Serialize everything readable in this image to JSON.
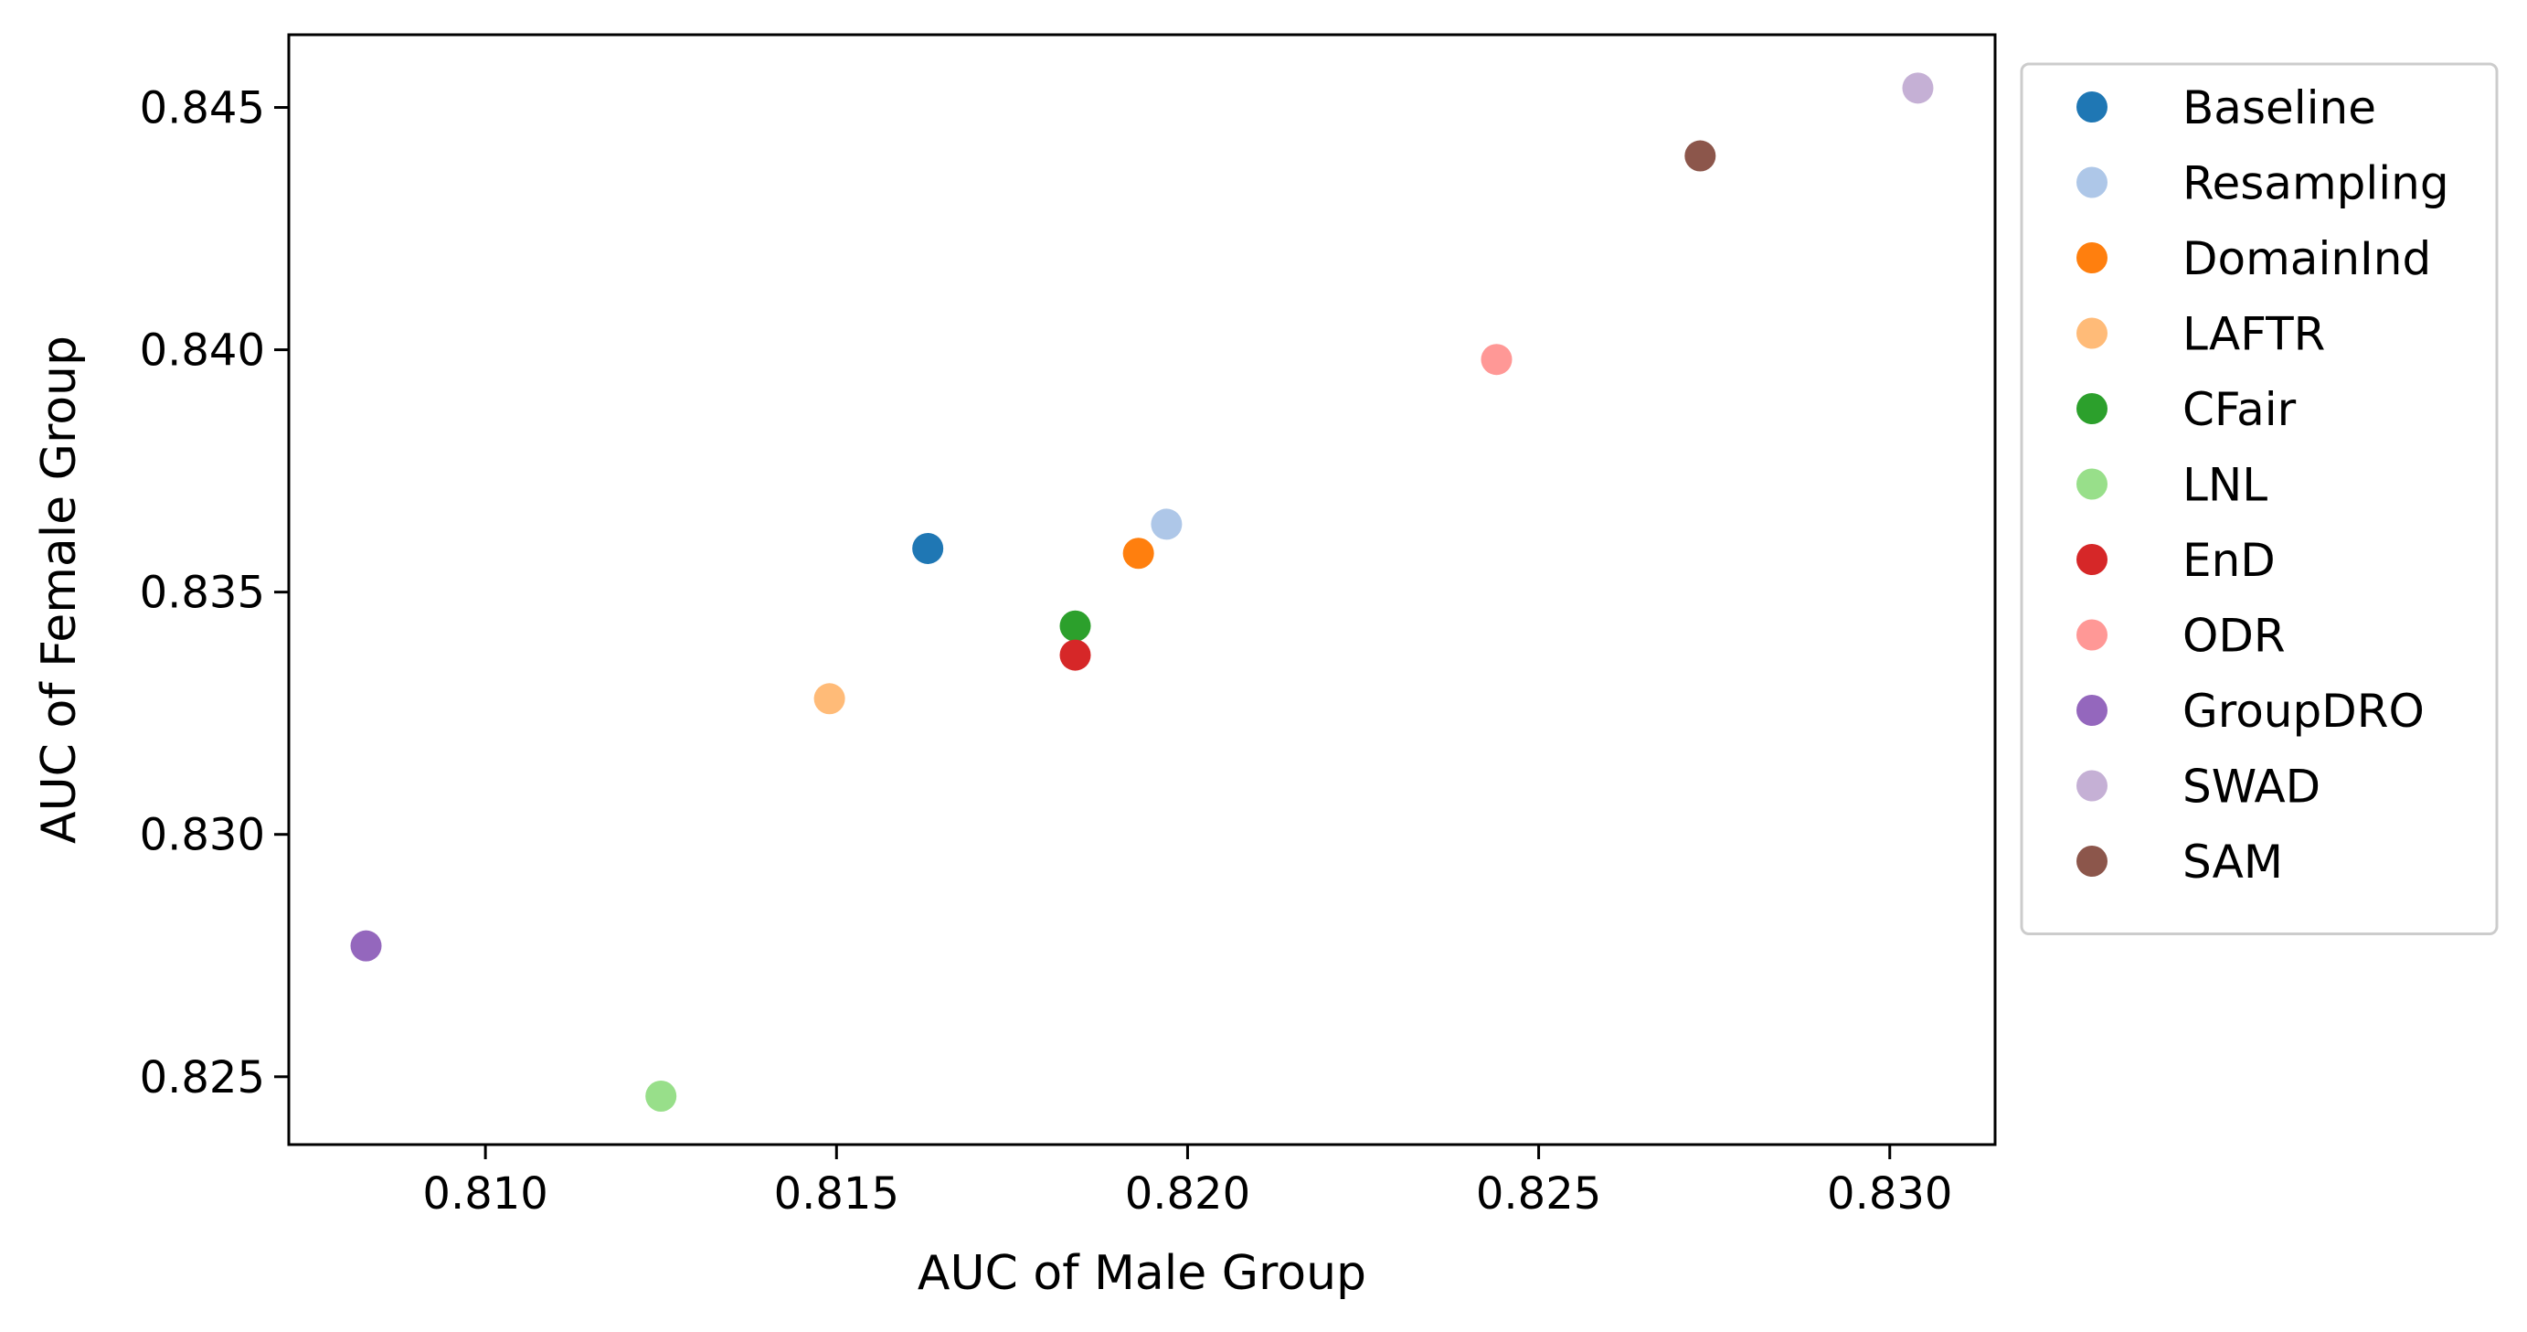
{
  "chart_data": {
    "type": "scatter",
    "title": "",
    "xlabel": "AUC of Male Group",
    "ylabel": "AUC of Female Group",
    "xlim": [
      0.8072,
      0.8315
    ],
    "ylim": [
      0.8236,
      0.8465
    ],
    "xticks": [
      0.81,
      0.815,
      0.82,
      0.825,
      0.83
    ],
    "yticks": [
      0.825,
      0.83,
      0.835,
      0.84,
      0.845
    ],
    "xtick_labels": [
      "0.810",
      "0.815",
      "0.820",
      "0.825",
      "0.830"
    ],
    "ytick_labels": [
      "0.825",
      "0.830",
      "0.835",
      "0.840",
      "0.845"
    ],
    "grid": false,
    "legend_position": "outside-right-top",
    "series": [
      {
        "name": "Baseline",
        "color": "#1f77b4",
        "x": 0.8163,
        "y": 0.8359
      },
      {
        "name": "Resampling",
        "color": "#aec7e8",
        "x": 0.8197,
        "y": 0.8364
      },
      {
        "name": "DomainInd",
        "color": "#ff7f0e",
        "x": 0.8193,
        "y": 0.8358
      },
      {
        "name": "LAFTR",
        "color": "#ffbb78",
        "x": 0.8149,
        "y": 0.8328
      },
      {
        "name": "CFair",
        "color": "#2ca02c",
        "x": 0.8184,
        "y": 0.8343
      },
      {
        "name": "LNL",
        "color": "#98df8a",
        "x": 0.8125,
        "y": 0.8246
      },
      {
        "name": "EnD",
        "color": "#d62728",
        "x": 0.8184,
        "y": 0.8337
      },
      {
        "name": "ODR",
        "color": "#ff9896",
        "x": 0.8244,
        "y": 0.8398
      },
      {
        "name": "GroupDRO",
        "color": "#9467bd",
        "x": 0.8083,
        "y": 0.8277
      },
      {
        "name": "SWAD",
        "color": "#c5b0d5",
        "x": 0.8304,
        "y": 0.8454
      },
      {
        "name": "SAM",
        "color": "#8c564b",
        "x": 0.8273,
        "y": 0.844
      }
    ]
  }
}
